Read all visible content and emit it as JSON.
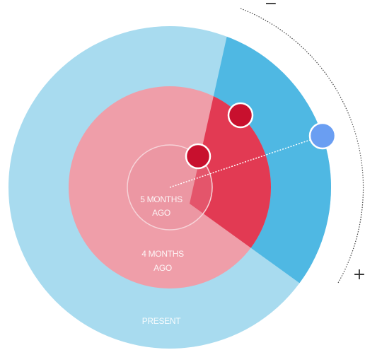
{
  "controls": {
    "minus": "−",
    "plus": "+"
  },
  "rings": [
    {
      "lines": [
        "5 MONTHS",
        "AGO"
      ]
    },
    {
      "lines": [
        "4 MONTHS",
        "AGO"
      ]
    },
    {
      "lines": [
        "PRESENT"
      ]
    }
  ]
}
